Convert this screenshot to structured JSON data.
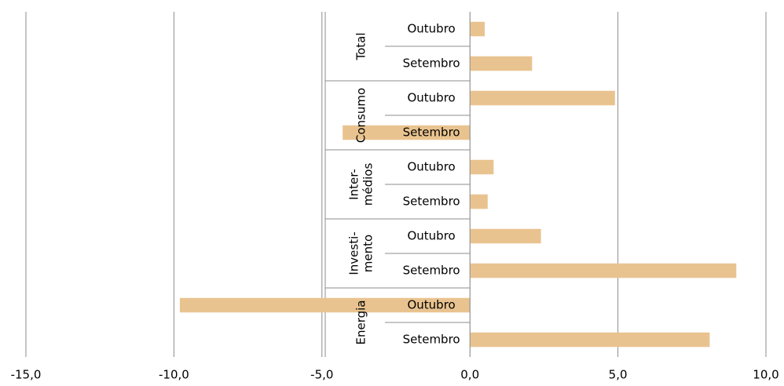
{
  "chart_data": {
    "type": "bar",
    "orientation": "horizontal",
    "color": "#e9c38f",
    "grid": true,
    "xlim": [
      -15,
      10
    ],
    "xticks": [
      {
        "value": -15,
        "label": "-15,0"
      },
      {
        "value": -10,
        "label": "-10,0"
      },
      {
        "value": -5,
        "label": "-5,0"
      },
      {
        "value": 0,
        "label": "0,0"
      },
      {
        "value": 5,
        "label": "5,0"
      },
      {
        "value": 10,
        "label": "10,0"
      }
    ],
    "groups": [
      {
        "label": [
          "Total"
        ],
        "categories": [
          "Outubro",
          "Setembro"
        ],
        "values": [
          0.5,
          2.1
        ]
      },
      {
        "label": [
          "Consumo"
        ],
        "categories": [
          "Outubro",
          "Setembro"
        ],
        "values": [
          4.9,
          -4.3
        ]
      },
      {
        "label": [
          "Inter-",
          "médios"
        ],
        "categories": [
          "Outubro",
          "Setembro"
        ],
        "values": [
          0.8,
          0.6
        ]
      },
      {
        "label": [
          "Investi-",
          "mento"
        ],
        "categories": [
          "Outubro",
          "Setembro"
        ],
        "values": [
          2.4,
          9.0
        ]
      },
      {
        "label": [
          "Energia"
        ],
        "categories": [
          "Outubro",
          "Setembro"
        ],
        "values": [
          -9.8,
          8.1
        ]
      }
    ]
  }
}
